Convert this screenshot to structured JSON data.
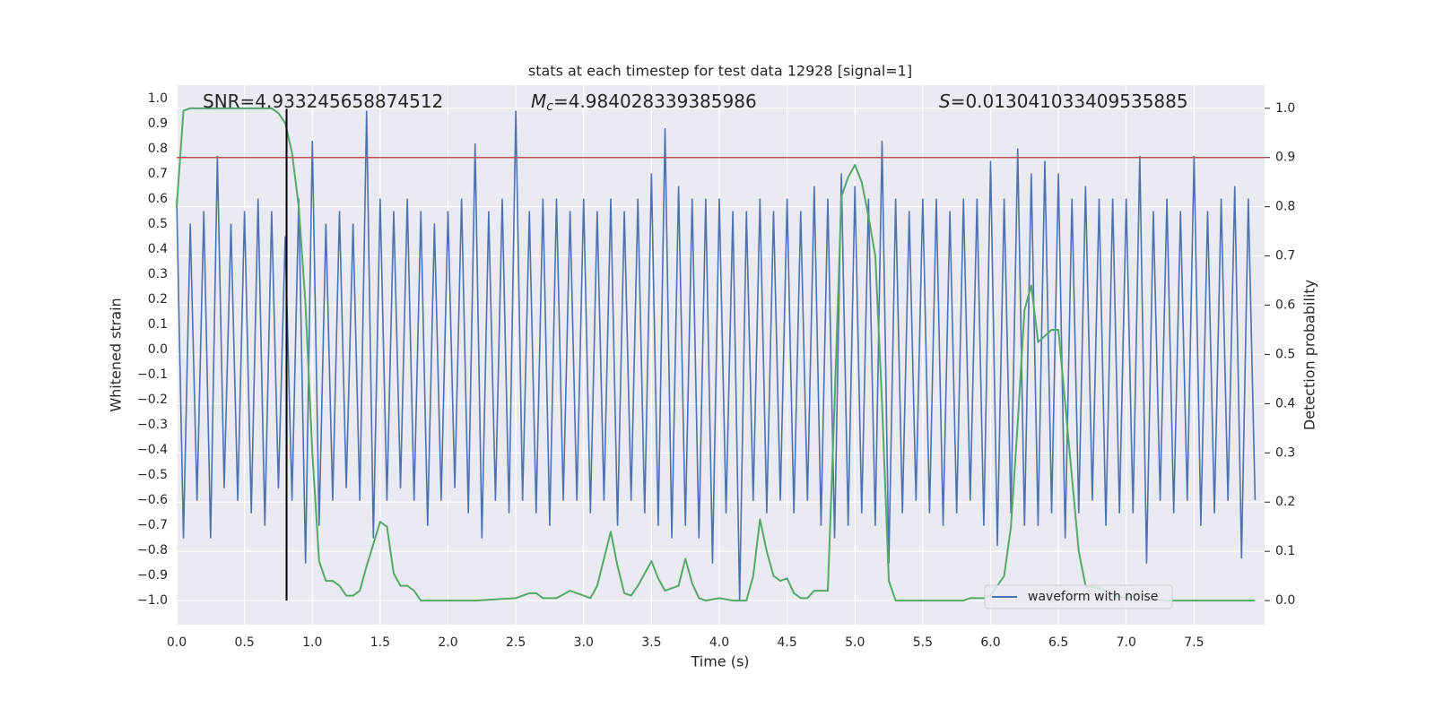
{
  "chart_data": {
    "type": "line",
    "title": "stats at each timestep for test data 12928 [signal=1]",
    "xlabel": "Time (s)",
    "ylabel": "Whitened strain",
    "y2label": "Detection probability",
    "annotations": [
      {
        "text": "SNR=4.933245658874512"
      },
      {
        "symbol": "M",
        "subscript": "c",
        "text": "=4.984028339385986"
      },
      {
        "symbol": "S",
        "text": "=0.013041033409535885"
      }
    ],
    "xlim": [
      0,
      8.02
    ],
    "ylim": [
      -1.096,
      1.054
    ],
    "y2lim": [
      -0.049,
      1.047
    ],
    "grid": true,
    "legend": "lower right",
    "xticks": [
      {
        "value": 0,
        "label": "0.0"
      },
      0.5,
      {
        "value": 1,
        "label": "1.0"
      },
      1.5,
      {
        "value": 2,
        "label": "2.0"
      },
      2.5,
      {
        "value": 3,
        "label": "3.0"
      },
      3.5,
      {
        "value": 4,
        "label": "4.0"
      },
      4.5,
      {
        "value": 5,
        "label": "5.0"
      },
      5.5,
      {
        "value": 6,
        "label": "6.0"
      },
      6.5,
      {
        "value": 7,
        "label": "7.0"
      },
      7.5
    ],
    "yticks": [
      {
        "value": -1,
        "label": "−1.0"
      },
      {
        "value": -0.9,
        "label": "−0.9"
      },
      {
        "value": -0.8,
        "label": "−0.8"
      },
      {
        "value": -0.7,
        "label": "−0.7"
      },
      {
        "value": -0.6,
        "label": "−0.6"
      },
      {
        "value": -0.5,
        "label": "−0.5"
      },
      {
        "value": -0.4,
        "label": "−0.4"
      },
      {
        "value": -0.3,
        "label": "−0.3"
      },
      {
        "value": -0.2,
        "label": "−0.2"
      },
      {
        "value": -0.1,
        "label": "−0.1"
      },
      {
        "value": 0,
        "label": "0.0"
      },
      0.1,
      0.2,
      0.3,
      0.4,
      0.5,
      0.6,
      0.7,
      0.8,
      0.9,
      {
        "value": 1,
        "label": "1.0"
      }
    ],
    "y2ticks": [
      {
        "value": 0,
        "label": "0.0"
      },
      0.1,
      0.2,
      0.3,
      0.4,
      0.5,
      0.6,
      0.7,
      0.8,
      0.9,
      {
        "value": 1,
        "label": "1.0"
      }
    ],
    "series": [
      {
        "name": "waveform with noise",
        "color": "#4c72b0",
        "x": [
          0,
          0.05,
          0.1,
          0.15,
          0.2,
          0.25,
          0.3,
          0.35,
          0.4,
          0.45,
          0.5,
          0.55,
          0.6,
          0.65,
          0.7,
          0.75,
          0.8,
          0.85,
          0.9,
          0.95,
          1,
          1.05,
          1.1,
          1.15,
          1.2,
          1.25,
          1.3,
          1.35,
          1.4,
          1.45,
          1.5,
          1.55,
          1.6,
          1.65,
          1.7,
          1.75,
          1.8,
          1.85,
          1.9,
          1.95,
          2,
          2.05,
          2.1,
          2.15,
          2.2,
          2.25,
          2.3,
          2.35,
          2.4,
          2.45,
          2.5,
          2.55,
          2.6,
          2.65,
          2.7,
          2.75,
          2.8,
          2.85,
          2.9,
          2.95,
          3,
          3.05,
          3.1,
          3.15,
          3.2,
          3.25,
          3.3,
          3.35,
          3.4,
          3.45,
          3.5,
          3.55,
          3.6,
          3.65,
          3.7,
          3.75,
          3.8,
          3.85,
          3.9,
          3.95,
          4,
          4.05,
          4.1,
          4.15,
          4.2,
          4.25,
          4.3,
          4.35,
          4.4,
          4.45,
          4.5,
          4.55,
          4.6,
          4.65,
          4.7,
          4.75,
          4.8,
          4.85,
          4.9,
          4.95,
          5,
          5.05,
          5.1,
          5.15,
          5.2,
          5.25,
          5.3,
          5.35,
          5.4,
          5.45,
          5.5,
          5.55,
          5.6,
          5.65,
          5.7,
          5.75,
          5.8,
          5.85,
          5.9,
          5.95,
          6,
          6.05,
          6.1,
          6.15,
          6.2,
          6.25,
          6.3,
          6.35,
          6.4,
          6.45,
          6.5,
          6.55,
          6.6,
          6.65,
          6.7,
          6.75,
          6.8,
          6.85,
          6.9,
          6.95,
          7,
          7.05,
          7.1,
          7.15,
          7.2,
          7.25,
          7.3,
          7.35,
          7.4,
          7.45,
          7.5,
          7.55,
          7.6,
          7.65,
          7.7,
          7.75,
          7.8,
          7.85,
          7.9,
          7.95
        ],
        "values": [
          0.6,
          -0.75,
          0.5,
          -0.6,
          0.55,
          -0.75,
          0.77,
          -0.55,
          0.5,
          -0.6,
          0.55,
          -0.65,
          0.6,
          -0.7,
          0.55,
          -0.55,
          0.45,
          -0.6,
          0.6,
          -0.85,
          0.83,
          -0.7,
          0.5,
          -0.6,
          0.55,
          -0.55,
          0.5,
          -0.6,
          0.95,
          -0.75,
          0.6,
          -0.6,
          0.55,
          -0.55,
          0.6,
          -0.6,
          0.55,
          -0.7,
          0.5,
          -0.6,
          0.55,
          -0.55,
          0.6,
          -0.65,
          0.82,
          -0.75,
          0.55,
          -0.6,
          0.6,
          -0.65,
          0.95,
          -0.6,
          0.55,
          -0.65,
          0.6,
          -0.7,
          0.6,
          -0.6,
          0.55,
          -0.6,
          0.6,
          -0.65,
          0.55,
          -0.6,
          0.6,
          -0.7,
          0.55,
          -0.6,
          0.6,
          -0.65,
          0.7,
          -0.7,
          0.88,
          -0.75,
          0.65,
          -0.7,
          0.6,
          -0.75,
          0.6,
          -0.85,
          0.6,
          -0.65,
          0.55,
          -1.0,
          0.55,
          -0.6,
          0.6,
          -0.65,
          0.55,
          -0.6,
          0.6,
          -0.65,
          0.55,
          -0.6,
          0.65,
          -0.7,
          0.6,
          -0.75,
          0.7,
          -0.7,
          0.65,
          -0.65,
          0.6,
          -0.7,
          0.83,
          -0.85,
          0.6,
          -0.65,
          0.55,
          -0.6,
          0.6,
          -0.65,
          0.6,
          -0.7,
          0.55,
          -0.65,
          0.6,
          -0.6,
          0.6,
          -0.7,
          0.75,
          -0.78,
          0.6,
          -0.65,
          0.8,
          -0.7,
          0.7,
          -0.7,
          0.75,
          -0.65,
          0.7,
          -0.75,
          0.6,
          -0.65,
          0.65,
          -0.6,
          0.6,
          -0.7,
          0.6,
          -0.65,
          0.6,
          -0.65,
          0.77,
          -0.85,
          0.55,
          -0.6,
          0.6,
          -0.65,
          0.55,
          -0.6,
          0.77,
          -0.7,
          0.55,
          -0.65,
          0.6,
          -0.6,
          0.65,
          -0.83,
          0.6,
          -0.6
        ]
      },
      {
        "color": "#55a868",
        "axis": "y2",
        "x": [
          0,
          0.05,
          0.1,
          0.7,
          0.75,
          0.8,
          0.85,
          0.9,
          0.95,
          1,
          1.05,
          1.1,
          1.15,
          1.2,
          1.25,
          1.3,
          1.35,
          1.4,
          1.5,
          1.55,
          1.6,
          1.65,
          1.7,
          1.75,
          1.8,
          1.9,
          2,
          2.2,
          2.5,
          2.6,
          2.65,
          2.7,
          2.8,
          2.9,
          3,
          3.05,
          3.1,
          3.2,
          3.25,
          3.3,
          3.35,
          3.4,
          3.5,
          3.55,
          3.6,
          3.7,
          3.75,
          3.8,
          3.85,
          3.9,
          4,
          4.1,
          4.2,
          4.25,
          4.3,
          4.35,
          4.4,
          4.45,
          4.5,
          4.55,
          4.6,
          4.65,
          4.7,
          4.75,
          4.8,
          4.85,
          4.9,
          4.95,
          5,
          5.05,
          5.1,
          5.15,
          5.2,
          5.25,
          5.3,
          5.5,
          5.8,
          5.85,
          5.95,
          6,
          6.05,
          6.1,
          6.15,
          6.2,
          6.25,
          6.3,
          6.35,
          6.45,
          6.5,
          6.55,
          6.65,
          6.7,
          6.8,
          6.85,
          6.9,
          7,
          7.1,
          7.2,
          7.3,
          7.95
        ],
        "values": [
          0.8,
          0.995,
          1.0,
          1.0,
          0.99,
          0.97,
          0.91,
          0.8,
          0.6,
          0.3,
          0.08,
          0.04,
          0.04,
          0.03,
          0.01,
          0.01,
          0.02,
          0.07,
          0.16,
          0.15,
          0.055,
          0.03,
          0.03,
          0.02,
          0.0,
          0.0,
          0.0,
          0.0,
          0.005,
          0.015,
          0.015,
          0.005,
          0.005,
          0.02,
          0.01,
          0.005,
          0.03,
          0.14,
          0.07,
          0.015,
          0.01,
          0.03,
          0.08,
          0.045,
          0.02,
          0.03,
          0.085,
          0.035,
          0.005,
          0.0,
          0.005,
          0.0,
          0.0,
          0.05,
          0.165,
          0.1,
          0.05,
          0.04,
          0.045,
          0.015,
          0.005,
          0.005,
          0.02,
          0.02,
          0.02,
          0.4,
          0.82,
          0.86,
          0.885,
          0.85,
          0.78,
          0.7,
          0.4,
          0.04,
          0.0,
          0.0,
          0.0,
          0.005,
          0.005,
          0.01,
          0.03,
          0.05,
          0.15,
          0.36,
          0.59,
          0.64,
          0.525,
          0.55,
          0.55,
          0.4,
          0.1,
          0.03,
          0.025,
          0.02,
          0.01,
          0.005,
          0.013,
          0.003,
          0.0,
          0.0
        ]
      }
    ],
    "threshold": {
      "value": 0.9,
      "axis": "y2",
      "color": "#c44e52"
    },
    "vline": {
      "x": 0.81,
      "ymin": -1.0,
      "ymax": 0.96,
      "color": "#000000"
    }
  }
}
